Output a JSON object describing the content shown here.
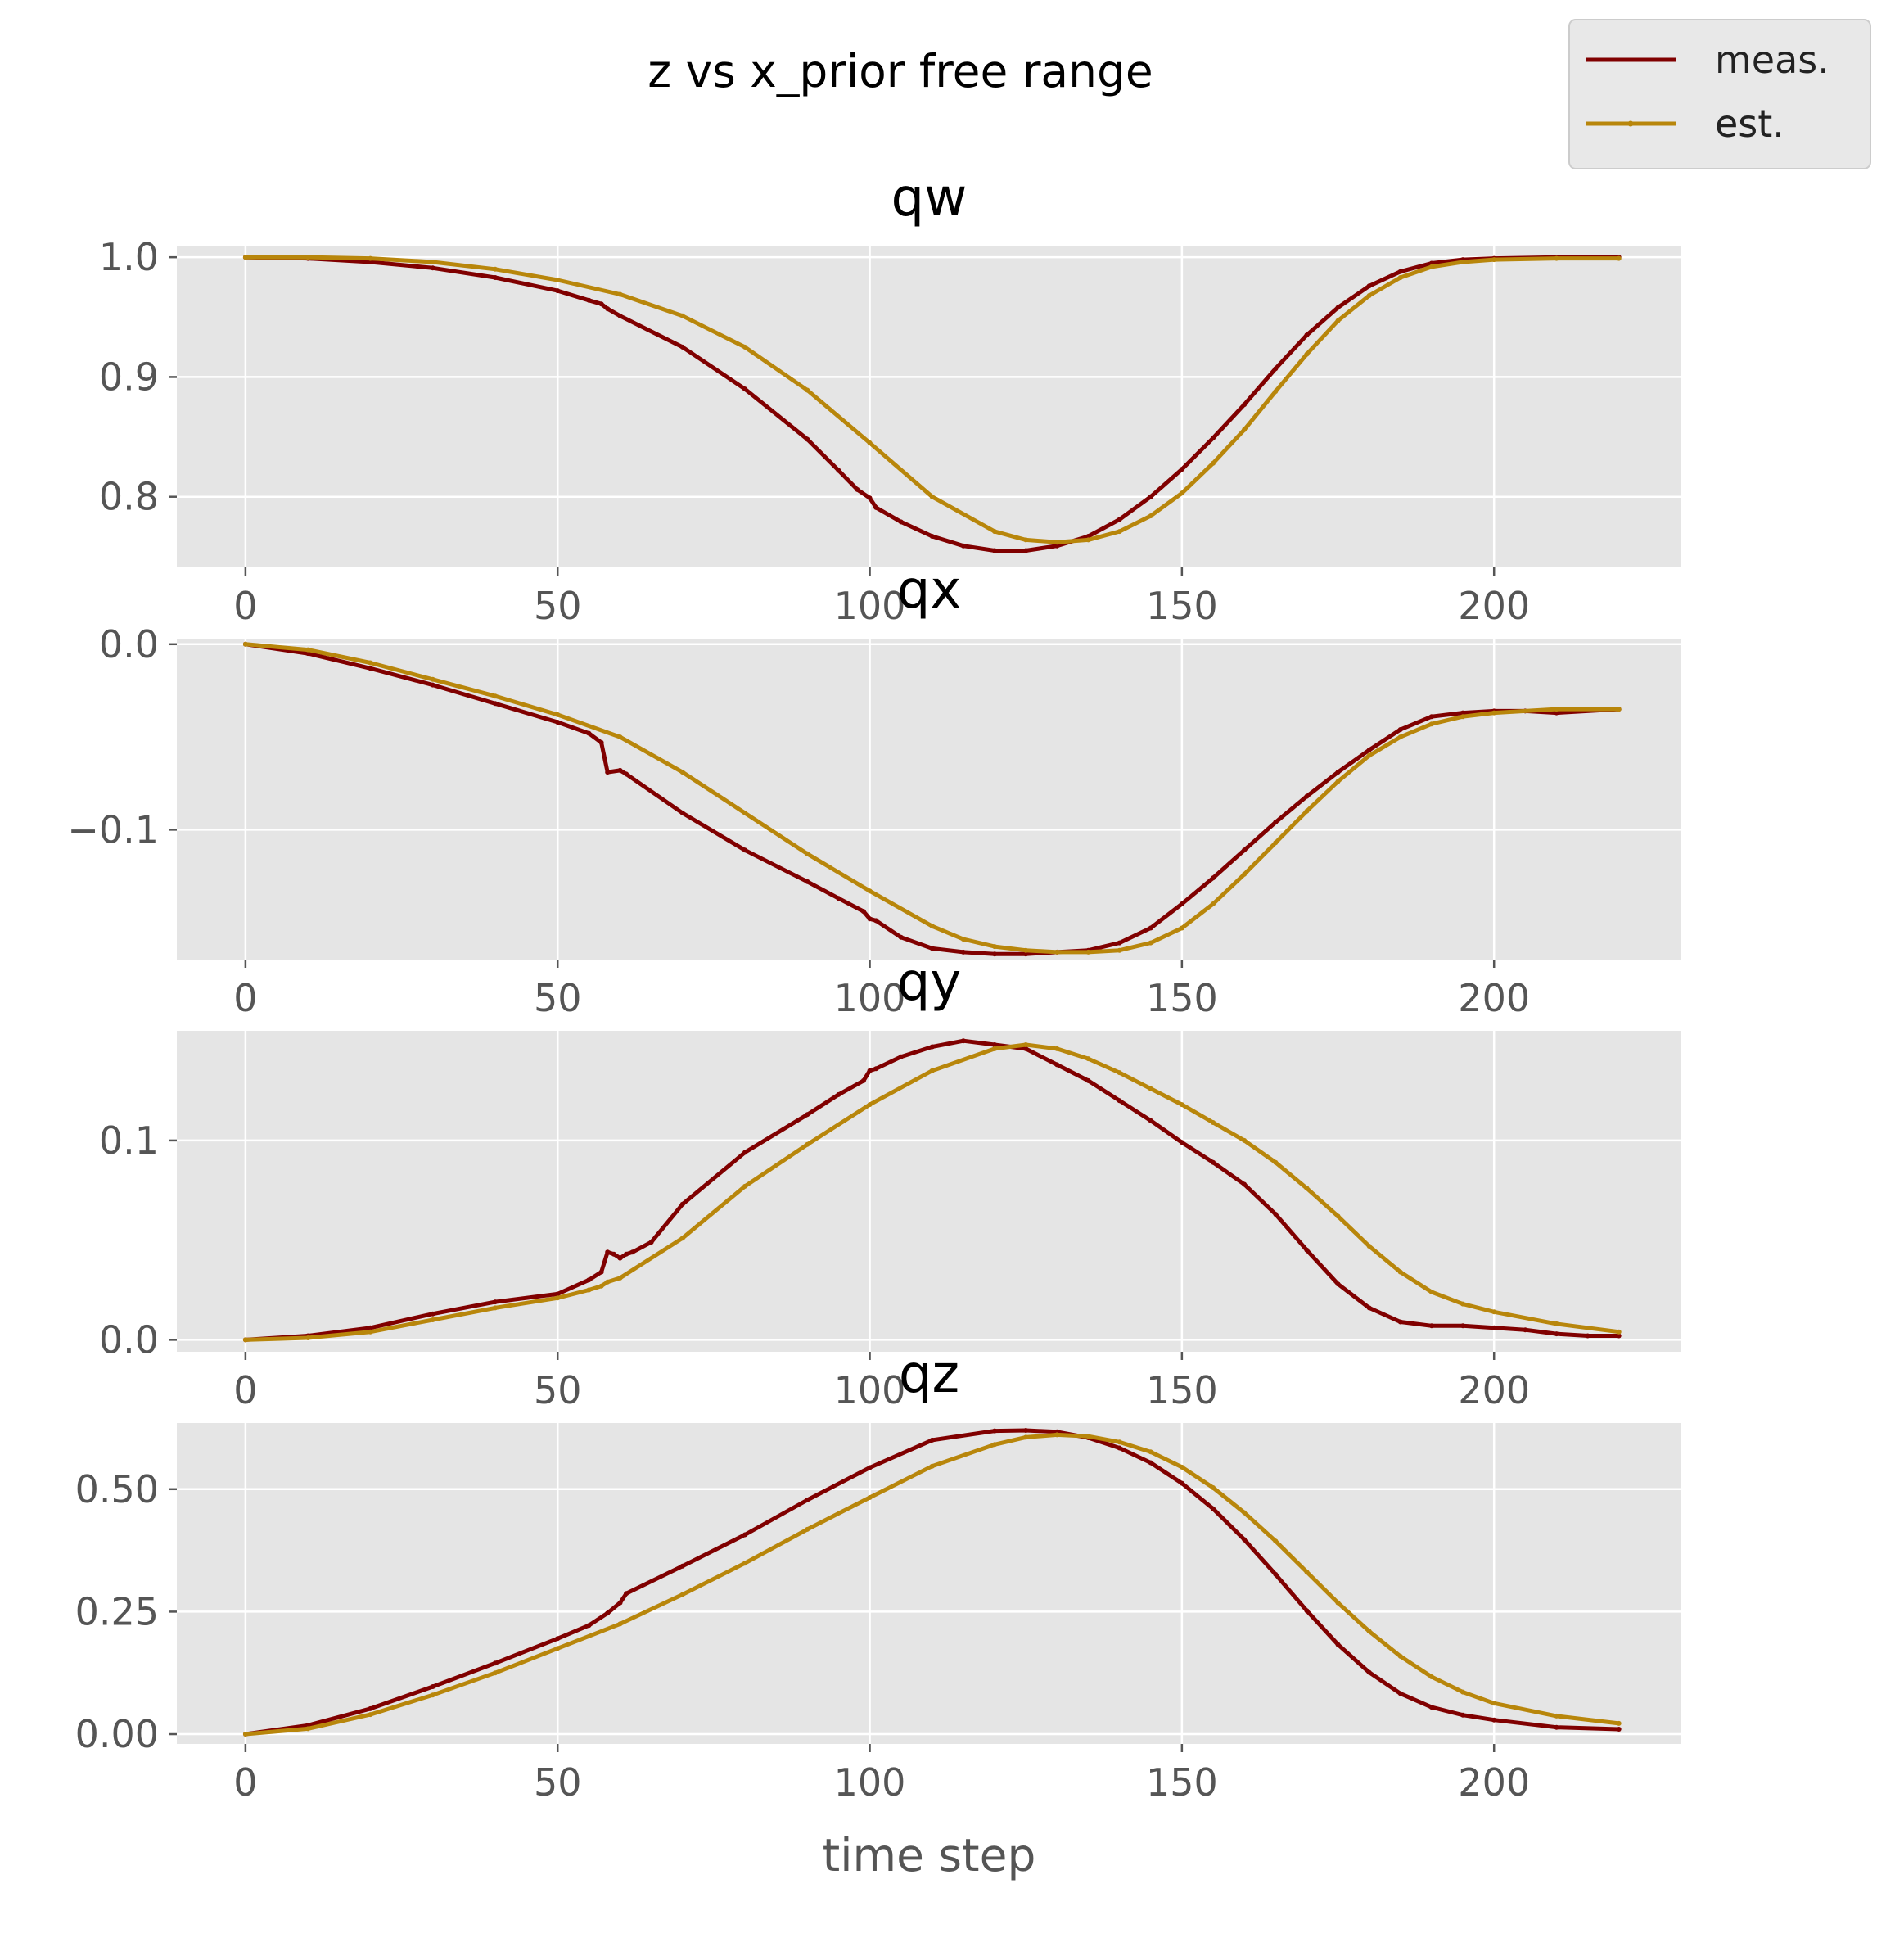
{
  "chart_data": {
    "type": "line",
    "title": "z vs x_prior free range",
    "xlabel": "time step",
    "legend": {
      "placement": "top-right",
      "entries": [
        "meas.",
        "est."
      ]
    },
    "grid": true,
    "colors": {
      "meas.": "#800000",
      "est.": "#b8860b",
      "axes_bg": "#e5e5e5",
      "grid": "#ffffff"
    },
    "x_ticks": [
      "0",
      "50",
      "100",
      "150",
      "200"
    ],
    "xlim": [
      -11,
      230
    ],
    "panels": [
      {
        "title": "qw",
        "ylim": [
          0.741,
          1.009
        ],
        "y_ticks": [
          {
            "v": 1.0,
            "label": "1.0"
          },
          {
            "v": 0.9,
            "label": "0.9"
          },
          {
            "v": 0.8,
            "label": "0.8"
          }
        ],
        "series": [
          {
            "name": "meas.",
            "x": [
              0,
              10,
              20,
              30,
              40,
              50,
              55,
              57,
              58,
              60,
              70,
              80,
              90,
              95,
              98,
              100,
              101,
              105,
              110,
              115,
              120,
              125,
              130,
              135,
              140,
              145,
              150,
              155,
              160,
              165,
              170,
              175,
              180,
              185,
              190,
              195,
              200,
              210,
              220
            ],
            "y": [
              1.0,
              0.999,
              0.996,
              0.991,
              0.983,
              0.972,
              0.964,
              0.961,
              0.957,
              0.951,
              0.925,
              0.89,
              0.848,
              0.822,
              0.806,
              0.799,
              0.791,
              0.779,
              0.767,
              0.759,
              0.755,
              0.755,
              0.759,
              0.767,
              0.781,
              0.8,
              0.823,
              0.849,
              0.877,
              0.907,
              0.935,
              0.958,
              0.976,
              0.988,
              0.995,
              0.998,
              0.999,
              1.0,
              1.0
            ]
          },
          {
            "name": "est.",
            "x": [
              0,
              10,
              20,
              30,
              40,
              50,
              60,
              70,
              80,
              90,
              100,
              110,
              120,
              125,
              130,
              135,
              140,
              145,
              150,
              155,
              160,
              165,
              170,
              175,
              180,
              185,
              190,
              195,
              200,
              210,
              220
            ],
            "y": [
              1.0,
              1.0,
              0.999,
              0.996,
              0.99,
              0.981,
              0.969,
              0.951,
              0.925,
              0.889,
              0.845,
              0.8,
              0.771,
              0.764,
              0.762,
              0.764,
              0.771,
              0.784,
              0.803,
              0.828,
              0.856,
              0.888,
              0.919,
              0.947,
              0.968,
              0.983,
              0.992,
              0.996,
              0.998,
              0.999,
              0.999
            ]
          }
        ]
      },
      {
        "title": "qx",
        "ylim": [
          -0.17,
          0.003
        ],
        "y_ticks": [
          {
            "v": 0.0,
            "label": "0.0"
          },
          {
            "v": -0.1,
            "label": "−0.1"
          }
        ],
        "series": [
          {
            "name": "meas.",
            "x": [
              0,
              10,
              20,
              30,
              40,
              50,
              55,
              57,
              58,
              60,
              61,
              70,
              80,
              90,
              95,
              99,
              100,
              101,
              105,
              110,
              115,
              120,
              125,
              130,
              135,
              140,
              145,
              150,
              155,
              160,
              165,
              170,
              175,
              180,
              185,
              190,
              195,
              200,
              205,
              210,
              220
            ],
            "y": [
              0.0,
              -0.005,
              -0.013,
              -0.022,
              -0.032,
              -0.042,
              -0.048,
              -0.053,
              -0.069,
              -0.068,
              -0.07,
              -0.091,
              -0.111,
              -0.128,
              -0.137,
              -0.144,
              -0.148,
              -0.149,
              -0.158,
              -0.164,
              -0.166,
              -0.167,
              -0.167,
              -0.166,
              -0.165,
              -0.161,
              -0.153,
              -0.14,
              -0.126,
              -0.111,
              -0.096,
              -0.082,
              -0.069,
              -0.057,
              -0.046,
              -0.039,
              -0.037,
              -0.036,
              -0.036,
              -0.037,
              -0.035
            ]
          },
          {
            "name": "est.",
            "x": [
              0,
              10,
              20,
              30,
              40,
              50,
              60,
              70,
              80,
              90,
              100,
              110,
              115,
              120,
              125,
              130,
              135,
              140,
              145,
              150,
              155,
              160,
              165,
              170,
              175,
              180,
              185,
              190,
              195,
              200,
              210,
              220
            ],
            "y": [
              0.0,
              -0.003,
              -0.01,
              -0.019,
              -0.028,
              -0.038,
              -0.05,
              -0.069,
              -0.091,
              -0.113,
              -0.133,
              -0.152,
              -0.159,
              -0.163,
              -0.165,
              -0.166,
              -0.166,
              -0.165,
              -0.161,
              -0.153,
              -0.14,
              -0.124,
              -0.107,
              -0.09,
              -0.074,
              -0.06,
              -0.05,
              -0.043,
              -0.039,
              -0.037,
              -0.035,
              -0.035
            ]
          }
        ]
      },
      {
        "title": "qy",
        "ylim": [
          -0.006,
          0.155
        ],
        "y_ticks": [
          {
            "v": 0.1,
            "label": "0.1"
          },
          {
            "v": 0.0,
            "label": "0.0"
          }
        ],
        "series": [
          {
            "name": "meas.",
            "x": [
              0,
              10,
              20,
              30,
              40,
              50,
              55,
              57,
              58,
              59,
              60,
              61,
              62,
              65,
              70,
              80,
              90,
              95,
              99,
              100,
              101,
              105,
              110,
              115,
              120,
              125,
              130,
              135,
              140,
              145,
              150,
              155,
              160,
              165,
              170,
              175,
              180,
              185,
              190,
              195,
              200,
              205,
              210,
              215,
              220
            ],
            "y": [
              0.0,
              0.002,
              0.006,
              0.013,
              0.019,
              0.023,
              0.03,
              0.034,
              0.044,
              0.043,
              0.041,
              0.043,
              0.044,
              0.049,
              0.068,
              0.094,
              0.113,
              0.123,
              0.13,
              0.135,
              0.136,
              0.142,
              0.147,
              0.15,
              0.148,
              0.146,
              0.138,
              0.13,
              0.12,
              0.11,
              0.099,
              0.089,
              0.078,
              0.063,
              0.045,
              0.028,
              0.016,
              0.009,
              0.007,
              0.007,
              0.006,
              0.005,
              0.003,
              0.002,
              0.002
            ]
          },
          {
            "name": "est.",
            "x": [
              0,
              10,
              20,
              30,
              40,
              50,
              55,
              57,
              58,
              60,
              70,
              80,
              90,
              100,
              110,
              120,
              125,
              130,
              135,
              140,
              145,
              150,
              155,
              160,
              165,
              170,
              175,
              180,
              185,
              190,
              195,
              200,
              210,
              220
            ],
            "y": [
              0.0,
              0.001,
              0.004,
              0.01,
              0.016,
              0.021,
              0.025,
              0.027,
              0.029,
              0.031,
              0.051,
              0.077,
              0.098,
              0.118,
              0.135,
              0.146,
              0.148,
              0.146,
              0.141,
              0.134,
              0.126,
              0.118,
              0.109,
              0.1,
              0.089,
              0.076,
              0.062,
              0.047,
              0.034,
              0.024,
              0.018,
              0.014,
              0.008,
              0.004
            ]
          }
        ]
      },
      {
        "title": "qz",
        "ylim": [
          -0.02,
          0.635
        ],
        "y_ticks": [
          {
            "v": 0.5,
            "label": "0.50"
          },
          {
            "v": 0.25,
            "label": "0.25"
          },
          {
            "v": 0.0,
            "label": "0.00"
          }
        ],
        "series": [
          {
            "name": "meas.",
            "x": [
              0,
              10,
              20,
              30,
              40,
              50,
              55,
              58,
              60,
              61,
              70,
              80,
              90,
              100,
              110,
              120,
              125,
              130,
              135,
              140,
              145,
              150,
              155,
              160,
              165,
              170,
              175,
              180,
              185,
              190,
              195,
              200,
              210,
              220
            ],
            "y": [
              0.0,
              0.018,
              0.052,
              0.097,
              0.145,
              0.195,
              0.222,
              0.247,
              0.268,
              0.287,
              0.343,
              0.407,
              0.478,
              0.544,
              0.6,
              0.619,
              0.62,
              0.617,
              0.605,
              0.584,
              0.554,
              0.512,
              0.46,
              0.397,
              0.326,
              0.252,
              0.183,
              0.126,
              0.083,
              0.055,
              0.039,
              0.029,
              0.014,
              0.01
            ]
          },
          {
            "name": "est.",
            "x": [
              0,
              10,
              20,
              30,
              40,
              50,
              60,
              70,
              80,
              90,
              100,
              110,
              120,
              125,
              130,
              135,
              140,
              145,
              150,
              155,
              160,
              165,
              170,
              175,
              180,
              185,
              190,
              195,
              200,
              210,
              220
            ],
            "y": [
              0.0,
              0.011,
              0.04,
              0.08,
              0.125,
              0.175,
              0.225,
              0.285,
              0.349,
              0.418,
              0.483,
              0.547,
              0.591,
              0.606,
              0.611,
              0.608,
              0.596,
              0.576,
              0.545,
              0.503,
              0.452,
              0.394,
              0.331,
              0.268,
              0.21,
              0.159,
              0.117,
              0.086,
              0.063,
              0.037,
              0.022
            ]
          }
        ]
      }
    ]
  }
}
